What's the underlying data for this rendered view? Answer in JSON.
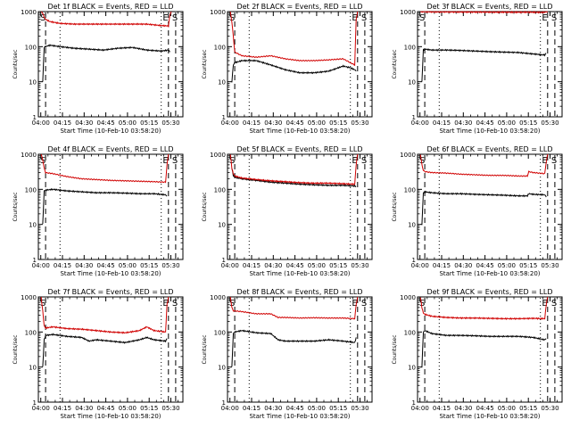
{
  "chart_data": [
    {
      "type": "line",
      "title": "Det 1f BLACK = Events, RED = LLD",
      "xlabel": "Start Time (10-Feb-10 03:58:20)",
      "ylabel": "Counts/sec",
      "y_scale": "log",
      "ylim": [
        1,
        1000
      ],
      "xlim_minutes": [
        0,
        100
      ],
      "x_tick_labels": [
        "04:00",
        "04:15",
        "04:30",
        "04:45",
        "05:00",
        "05:15",
        "05:30"
      ],
      "y_tick_labels": [
        "1",
        "10",
        "100",
        "1000"
      ],
      "markers": [
        {
          "label": "S",
          "position": "left"
        },
        {
          "label": "E",
          "position": "right"
        },
        {
          "label": "S",
          "position": "far-right"
        }
      ],
      "series": [
        {
          "color": "#000000",
          "x": [
            3,
            4,
            5,
            8,
            15,
            25,
            35,
            45,
            55,
            65,
            75,
            85,
            90,
            91
          ],
          "y": [
            10,
            95,
            100,
            110,
            100,
            90,
            85,
            80,
            90,
            95,
            80,
            75,
            80,
            70
          ]
        },
        {
          "color": "#d00000",
          "x": [
            2,
            3,
            4,
            5,
            8,
            15,
            25,
            35,
            45,
            55,
            65,
            75,
            85,
            90,
            91,
            92
          ],
          "y": [
            1000,
            900,
            700,
            600,
            520,
            460,
            440,
            440,
            440,
            440,
            440,
            440,
            400,
            390,
            800,
            1000
          ]
        }
      ]
    },
    {
      "type": "line",
      "title": "Det 2f BLACK = Events, RED = LLD",
      "xlabel": "Start Time (10-Feb-10 03:58:20)",
      "ylabel": "Counts/sec",
      "y_scale": "log",
      "ylim": [
        1,
        1000
      ],
      "xlim_minutes": [
        0,
        100
      ],
      "x_tick_labels": [
        "04:00",
        "04:15",
        "04:30",
        "04:45",
        "05:00",
        "05:15",
        "05:30"
      ],
      "y_tick_labels": [
        "1",
        "10",
        "100",
        "1000"
      ],
      "markers": [
        {
          "label": "S",
          "position": "left"
        },
        {
          "label": "E",
          "position": "right"
        },
        {
          "label": "S",
          "position": "far-right"
        }
      ],
      "series": [
        {
          "color": "#000000",
          "x": [
            3,
            4,
            5,
            10,
            20,
            30,
            40,
            50,
            60,
            70,
            80,
            85,
            88,
            89
          ],
          "y": [
            10,
            30,
            35,
            40,
            40,
            30,
            22,
            18,
            18,
            20,
            28,
            25,
            22,
            20
          ]
        },
        {
          "color": "#d00000",
          "x": [
            2,
            3,
            4,
            5,
            10,
            20,
            30,
            40,
            50,
            60,
            70,
            80,
            85,
            88,
            89,
            90
          ],
          "y": [
            1000,
            500,
            200,
            70,
            55,
            50,
            55,
            45,
            40,
            40,
            42,
            45,
            35,
            30,
            600,
            1000
          ]
        }
      ]
    },
    {
      "type": "line",
      "title": "Det 3f BLACK = Events, RED = LLD",
      "xlabel": "Start Time (10-Feb-10 03:58:20)",
      "ylabel": "Counts/sec",
      "y_scale": "log",
      "ylim": [
        1,
        1000
      ],
      "xlim_minutes": [
        0,
        100
      ],
      "x_tick_labels": [
        "04:00",
        "04:15",
        "04:30",
        "04:45",
        "05:00",
        "05:15",
        "05:30"
      ],
      "y_tick_labels": [
        "1",
        "10",
        "100",
        "1000"
      ],
      "markers": [
        {
          "label": "S",
          "position": "left"
        },
        {
          "label": "E",
          "position": "right"
        },
        {
          "label": "S",
          "position": "far-right"
        }
      ],
      "series": [
        {
          "color": "#000000",
          "x": [
            3,
            4,
            5,
            10,
            20,
            30,
            40,
            50,
            60,
            70,
            80,
            88,
            89
          ],
          "y": [
            10,
            80,
            85,
            80,
            80,
            78,
            75,
            72,
            70,
            68,
            62,
            58,
            65
          ]
        },
        {
          "color": "#d00000",
          "x": [
            2,
            3,
            5,
            10,
            20,
            40,
            60,
            80,
            88,
            89,
            90
          ],
          "y": [
            1000,
            1000,
            990,
            980,
            980,
            970,
            960,
            960,
            950,
            1000,
            1000
          ]
        }
      ]
    },
    {
      "type": "line",
      "title": "Det 4f BLACK = Events, RED = LLD",
      "xlabel": "Start Time (10-Feb-10 03:58:20)",
      "ylabel": "Counts/sec",
      "y_scale": "log",
      "ylim": [
        1,
        1000
      ],
      "xlim_minutes": [
        0,
        100
      ],
      "x_tick_labels": [
        "04:00",
        "04:15",
        "04:30",
        "04:45",
        "05:00",
        "05:15",
        "05:30"
      ],
      "y_tick_labels": [
        "1",
        "10",
        "100",
        "1000"
      ],
      "markers": [
        {
          "label": "S",
          "position": "left"
        },
        {
          "label": "E",
          "position": "right"
        },
        {
          "label": "S",
          "position": "far-right"
        }
      ],
      "series": [
        {
          "color": "#000000",
          "x": [
            3,
            4,
            5,
            10,
            20,
            30,
            40,
            50,
            60,
            70,
            80,
            88,
            89
          ],
          "y": [
            10,
            90,
            95,
            100,
            90,
            85,
            80,
            80,
            78,
            75,
            75,
            70,
            65
          ]
        },
        {
          "color": "#d00000",
          "x": [
            2,
            3,
            4,
            5,
            10,
            20,
            30,
            40,
            50,
            60,
            70,
            80,
            88,
            89,
            90
          ],
          "y": [
            1000,
            700,
            400,
            300,
            280,
            230,
            200,
            190,
            180,
            175,
            170,
            165,
            160,
            500,
            1000
          ]
        }
      ]
    },
    {
      "type": "line",
      "title": "Det 5f BLACK = Events, RED = LLD",
      "xlabel": "Start Time (10-Feb-10 03:58:20)",
      "ylabel": "Counts/sec",
      "y_scale": "log",
      "ylim": [
        1,
        1000
      ],
      "xlim_minutes": [
        0,
        100
      ],
      "x_tick_labels": [
        "04:00",
        "04:15",
        "04:30",
        "04:45",
        "05:00",
        "05:15",
        "05:30"
      ],
      "y_tick_labels": [
        "1",
        "10",
        "100",
        "1000"
      ],
      "markers": [
        {
          "label": "S",
          "position": "left"
        },
        {
          "label": "E",
          "position": "right"
        },
        {
          "label": "S",
          "position": "far-right"
        }
      ],
      "series": [
        {
          "color": "#000000",
          "x": [
            3,
            4,
            5,
            10,
            20,
            30,
            40,
            50,
            60,
            70,
            80,
            88,
            89
          ],
          "y": [
            400,
            250,
            220,
            200,
            180,
            160,
            150,
            140,
            135,
            130,
            130,
            125,
            120
          ]
        },
        {
          "color": "#d00000",
          "x": [
            2,
            3,
            4,
            5,
            10,
            20,
            30,
            40,
            50,
            60,
            70,
            80,
            88,
            89,
            90
          ],
          "y": [
            1000,
            400,
            280,
            240,
            210,
            190,
            175,
            165,
            155,
            150,
            150,
            145,
            140,
            500,
            1000
          ]
        }
      ]
    },
    {
      "type": "line",
      "title": "Det 6f BLACK = Events, RED = LLD",
      "xlabel": "Start Time (10-Feb-10 03:58:20)",
      "ylabel": "Counts/sec",
      "y_scale": "log",
      "ylim": [
        1,
        1000
      ],
      "xlim_minutes": [
        0,
        100
      ],
      "x_tick_labels": [
        "04:00",
        "04:15",
        "04:30",
        "04:45",
        "05:00",
        "05:15",
        "05:30"
      ],
      "y_tick_labels": [
        "1",
        "10",
        "100",
        "1000"
      ],
      "markers": [
        {
          "label": "S",
          "position": "left"
        },
        {
          "label": "E",
          "position": "right"
        },
        {
          "label": "S",
          "position": "far-right"
        }
      ],
      "series": [
        {
          "color": "#000000",
          "x": [
            3,
            4,
            5,
            10,
            20,
            30,
            40,
            50,
            60,
            70,
            76,
            77,
            80,
            88,
            89
          ],
          "y": [
            10,
            80,
            85,
            80,
            75,
            75,
            72,
            70,
            68,
            65,
            65,
            75,
            72,
            70,
            60
          ]
        },
        {
          "color": "#d00000",
          "x": [
            2,
            3,
            4,
            5,
            10,
            20,
            30,
            40,
            50,
            60,
            70,
            76,
            77,
            80,
            88,
            89,
            90
          ],
          "y": [
            1000,
            500,
            350,
            320,
            300,
            290,
            270,
            260,
            250,
            250,
            240,
            240,
            320,
            300,
            280,
            600,
            1000
          ]
        }
      ]
    },
    {
      "type": "line",
      "title": "Det 7f BLACK = Events, RED = LLD",
      "xlabel": "Start Time (10-Feb-10 03:58:20)",
      "ylabel": "Counts/sec",
      "y_scale": "log",
      "ylim": [
        1,
        1000
      ],
      "xlim_minutes": [
        0,
        100
      ],
      "x_tick_labels": [
        "04:00",
        "04:15",
        "04:30",
        "04:45",
        "05:00",
        "05:15",
        "05:30"
      ],
      "y_tick_labels": [
        "1",
        "10",
        "100",
        "1000"
      ],
      "markers": [
        {
          "label": "S",
          "position": "left"
        },
        {
          "label": "E",
          "position": "right"
        },
        {
          "label": "S",
          "position": "far-right"
        }
      ],
      "series": [
        {
          "color": "#000000",
          "x": [
            3,
            4,
            5,
            10,
            20,
            30,
            35,
            40,
            50,
            60,
            70,
            75,
            80,
            88,
            89
          ],
          "y": [
            10,
            60,
            80,
            85,
            75,
            70,
            55,
            60,
            55,
            50,
            60,
            70,
            60,
            55,
            65
          ]
        },
        {
          "color": "#d00000",
          "x": [
            2,
            3,
            4,
            5,
            10,
            20,
            30,
            40,
            50,
            60,
            70,
            75,
            80,
            88,
            89,
            90
          ],
          "y": [
            1000,
            400,
            150,
            130,
            140,
            125,
            120,
            110,
            100,
            95,
            110,
            140,
            110,
            100,
            600,
            1000
          ]
        }
      ]
    },
    {
      "type": "line",
      "title": "Det 8f BLACK = Events, RED = LLD",
      "xlabel": "Start Time (10-Feb-10 03:58:20)",
      "ylabel": "Counts/sec",
      "y_scale": "log",
      "ylim": [
        1,
        1000
      ],
      "xlim_minutes": [
        0,
        100
      ],
      "x_tick_labels": [
        "04:00",
        "04:15",
        "04:30",
        "04:45",
        "05:00",
        "05:15",
        "05:30"
      ],
      "y_tick_labels": [
        "1",
        "10",
        "100",
        "1000"
      ],
      "markers": [
        {
          "label": "S",
          "position": "left"
        },
        {
          "label": "E",
          "position": "right"
        },
        {
          "label": "S",
          "position": "far-right"
        }
      ],
      "series": [
        {
          "color": "#000000",
          "x": [
            3,
            4,
            5,
            10,
            20,
            30,
            35,
            40,
            50,
            60,
            70,
            80,
            88,
            89
          ],
          "y": [
            10,
            90,
            100,
            110,
            95,
            90,
            60,
            55,
            55,
            55,
            60,
            55,
            50,
            70
          ]
        },
        {
          "color": "#d00000",
          "x": [
            2,
            3,
            4,
            5,
            10,
            20,
            30,
            35,
            40,
            50,
            60,
            70,
            80,
            88,
            89,
            90
          ],
          "y": [
            1000,
            500,
            400,
            400,
            380,
            330,
            330,
            260,
            260,
            250,
            255,
            250,
            250,
            240,
            600,
            1000
          ]
        }
      ]
    },
    {
      "type": "line",
      "title": "Det 9f BLACK = Events, RED = LLD",
      "xlabel": "Start Time (10-Feb-10 03:58:20)",
      "ylabel": "Counts/sec",
      "y_scale": "log",
      "ylim": [
        1,
        1000
      ],
      "xlim_minutes": [
        0,
        100
      ],
      "x_tick_labels": [
        "04:00",
        "04:15",
        "04:30",
        "04:45",
        "05:00",
        "05:15",
        "05:30"
      ],
      "y_tick_labels": [
        "1",
        "10",
        "100",
        "1000"
      ],
      "markers": [
        {
          "label": "S",
          "position": "left"
        },
        {
          "label": "E",
          "position": "right"
        },
        {
          "label": "S",
          "position": "far-right"
        }
      ],
      "series": [
        {
          "color": "#000000",
          "x": [
            3,
            4,
            5,
            10,
            20,
            30,
            40,
            50,
            60,
            70,
            80,
            88,
            89
          ],
          "y": [
            10,
            100,
            110,
            90,
            80,
            80,
            78,
            75,
            75,
            75,
            70,
            60,
            65
          ]
        },
        {
          "color": "#d00000",
          "x": [
            2,
            3,
            4,
            5,
            10,
            20,
            30,
            40,
            50,
            60,
            70,
            80,
            88,
            89,
            90
          ],
          "y": [
            1000,
            500,
            350,
            320,
            280,
            260,
            250,
            250,
            245,
            240,
            240,
            245,
            240,
            600,
            1000
          ]
        }
      ]
    }
  ]
}
